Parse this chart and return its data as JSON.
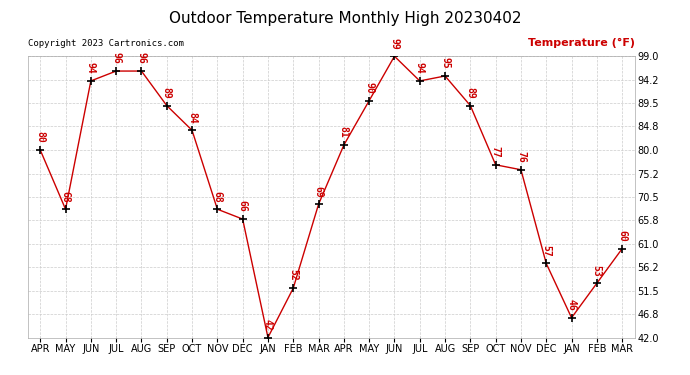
{
  "title": "Outdoor Temperature Monthly High 20230402",
  "copyright": "Copyright 2023 Cartronics.com",
  "ylabel": "Temperature (°F)",
  "months": [
    "APR",
    "MAY",
    "JUN",
    "JUL",
    "AUG",
    "SEP",
    "OCT",
    "NOV",
    "DEC",
    "JAN",
    "FEB",
    "MAR",
    "APR",
    "MAY",
    "JUN",
    "JUL",
    "AUG",
    "SEP",
    "OCT",
    "NOV",
    "DEC",
    "JAN",
    "FEB",
    "MAR"
  ],
  "values": [
    80,
    68,
    94,
    96,
    96,
    89,
    84,
    68,
    66,
    42,
    52,
    69,
    81,
    90,
    99,
    94,
    95,
    89,
    77,
    76,
    57,
    46,
    53,
    60
  ],
  "line_color": "#cc0000",
  "marker": "+",
  "marker_color": "#000000",
  "label_color": "#cc0000",
  "grid_color": "#cccccc",
  "background_color": "#ffffff",
  "title_fontsize": 11,
  "label_fontsize": 7,
  "ylabel_fontsize": 8,
  "copyright_fontsize": 6.5,
  "tick_fontsize": 7,
  "ylim_min": 42.0,
  "ylim_max": 99.0,
  "yticks": [
    42.0,
    46.8,
    51.5,
    56.2,
    61.0,
    65.8,
    70.5,
    75.2,
    80.0,
    84.8,
    89.5,
    94.2,
    99.0
  ]
}
